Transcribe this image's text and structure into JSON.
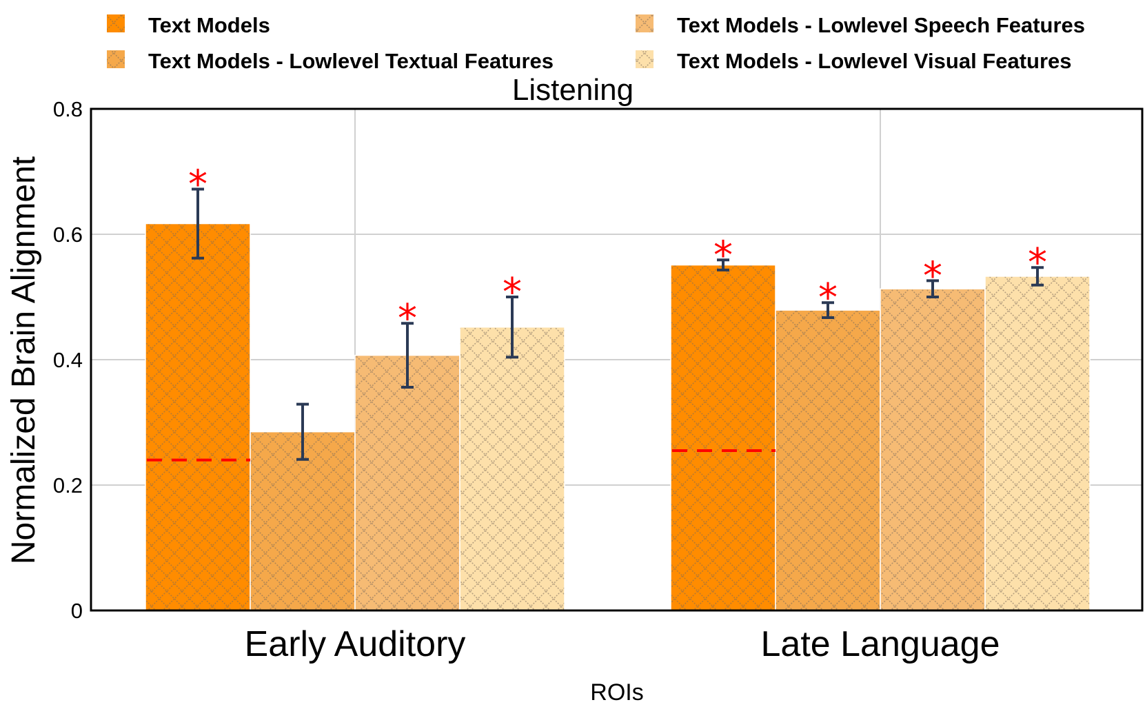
{
  "chart_data": {
    "type": "bar",
    "title": "Listening",
    "xlabel": "ROIs",
    "ylabel": "Normalized Brain Alignment",
    "ylim": [
      0,
      0.8
    ],
    "yticks": [
      0,
      0.2,
      0.4,
      0.6,
      0.8
    ],
    "ytick_labels": [
      "0",
      "0.2",
      "0.4",
      "0.6",
      "0.8"
    ],
    "grid": true,
    "legend_position": "top",
    "categories": [
      "Early Auditory",
      "Late Language"
    ],
    "series": [
      {
        "name": "Text Models",
        "color": "#ff8c00",
        "values": [
          0.617,
          0.551
        ],
        "errors": [
          0.055,
          0.008
        ],
        "significant": [
          true,
          true
        ]
      },
      {
        "name": "Text Models - Lowlevel Textual Features",
        "color": "#f5a84a",
        "values": [
          0.285,
          0.479
        ],
        "errors": [
          0.044,
          0.012
        ],
        "significant": [
          false,
          true
        ]
      },
      {
        "name": "Text Models - Lowlevel Speech Features",
        "color": "#f6bb74",
        "values": [
          0.407,
          0.513
        ],
        "errors": [
          0.051,
          0.013
        ],
        "significant": [
          true,
          true
        ]
      },
      {
        "name": "Text Models - Lowlevel Visual Features",
        "color": "#fde0aa",
        "values": [
          0.452,
          0.533
        ],
        "errors": [
          0.048,
          0.014
        ],
        "significant": [
          true,
          true
        ]
      }
    ],
    "baseline": {
      "values": [
        0.24,
        0.255
      ],
      "color": "#ff0000",
      "style": "dashed"
    },
    "significance_marker": "*",
    "error_bar_color": "#2b3a55"
  }
}
